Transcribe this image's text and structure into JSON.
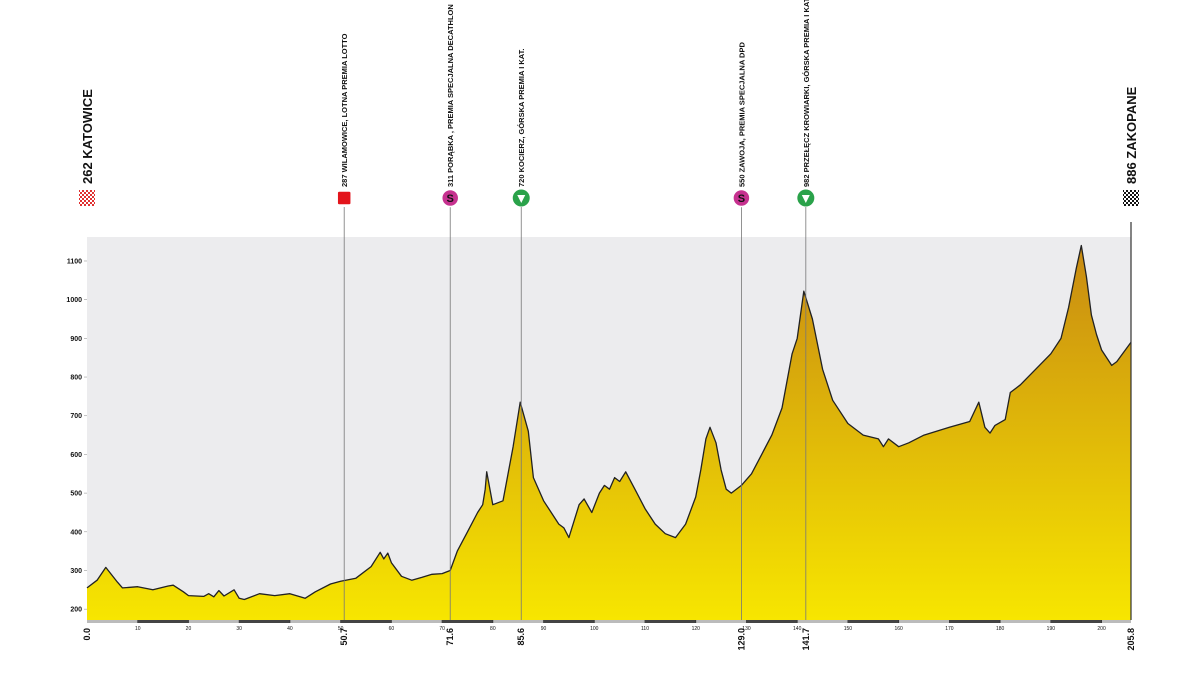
{
  "chart_data": {
    "type": "area",
    "x": [
      0,
      2,
      3.7,
      6,
      7,
      10,
      13,
      16,
      17,
      19,
      20,
      23,
      24,
      25,
      26,
      27,
      29,
      30,
      31,
      34,
      37,
      40,
      42,
      43,
      45,
      48,
      50,
      53,
      56,
      57.8,
      58.5,
      59.3,
      60,
      62,
      64,
      66,
      68,
      70,
      71.6,
      73,
      75,
      77,
      78,
      78.5,
      78.8,
      80,
      82,
      84,
      85.4,
      87,
      88,
      90,
      93,
      94,
      95,
      97,
      98,
      99.5,
      101,
      102,
      103,
      104,
      105,
      106.2,
      108,
      110,
      112,
      114,
      116,
      118,
      120,
      121,
      122,
      122.8,
      124,
      125,
      126,
      127,
      129,
      131,
      133,
      135,
      137,
      139,
      140,
      141.3,
      143,
      145,
      147,
      150,
      153,
      156,
      157,
      158,
      160,
      162,
      165,
      170,
      174,
      175.8,
      177,
      178,
      179,
      181,
      182,
      184,
      187,
      190,
      192,
      193.5,
      195,
      196,
      197,
      198,
      199,
      200,
      202,
      203,
      205.8
    ],
    "values": [
      255,
      275,
      308,
      270,
      255,
      258,
      250,
      260,
      262,
      245,
      235,
      233,
      240,
      232,
      248,
      234,
      250,
      228,
      225,
      240,
      235,
      240,
      232,
      228,
      245,
      265,
      272,
      280,
      310,
      347,
      330,
      345,
      320,
      285,
      275,
      282,
      290,
      292,
      300,
      350,
      400,
      450,
      470,
      510,
      555,
      470,
      480,
      620,
      735,
      660,
      540,
      480,
      420,
      410,
      385,
      470,
      485,
      450,
      500,
      520,
      510,
      540,
      530,
      555,
      510,
      460,
      420,
      395,
      385,
      420,
      490,
      560,
      640,
      670,
      630,
      560,
      510,
      500,
      520,
      550,
      600,
      650,
      720,
      860,
      900,
      1022,
      950,
      820,
      740,
      680,
      650,
      640,
      620,
      640,
      620,
      630,
      650,
      670,
      685,
      735,
      670,
      655,
      675,
      690,
      760,
      780,
      820,
      860,
      900,
      980,
      1080,
      1140,
      1060,
      960,
      910,
      870,
      830,
      840,
      890
    ],
    "xlim": [
      0,
      205.8
    ],
    "ylim": [
      172,
      1162
    ],
    "yticks": [
      200,
      300,
      400,
      500,
      600,
      700,
      800,
      900,
      1000,
      1100
    ],
    "xticks": [
      10,
      20,
      30,
      40,
      50,
      60,
      70,
      80,
      90,
      100,
      110,
      120,
      130,
      140,
      150,
      160,
      170,
      180,
      190,
      200
    ],
    "color_low": "#f7e600",
    "color_high": "#c88a12",
    "waypoints": [
      {
        "km": {
          "value": 0,
          "label": "0.0"
        },
        "label": "262 KATOWICE",
        "icon": "start"
      },
      {
        "km": 50.7,
        "label": "287 WILAMOWICE, LOTNA PREMIA LOTTO",
        "icon": "sprint"
      },
      {
        "km": 71.6,
        "label": "311 PORĄBKA , PREMIA SPECJALNA DECATHLON",
        "icon": "special",
        "icon_text": "S"
      },
      {
        "km": 85.6,
        "label": "720 KOCIERZ, GÓRSKA PREMIA I KAT.",
        "icon": "mountain"
      },
      {
        "km": {
          "value": 129,
          "label": "129.0"
        },
        "label": "550 ZAWOJA, PREMIA SPECJALNA DPD",
        "icon": "special",
        "icon_text": "S"
      },
      {
        "km": 141.7,
        "label": "982 PRZEŁĘCZ KROWIARKI, GÓRSKA PREMIA I KAT.",
        "icon": "mountain"
      },
      {
        "km": 205.8,
        "label": "886 ZAKOPANE",
        "icon": "finish"
      }
    ]
  }
}
